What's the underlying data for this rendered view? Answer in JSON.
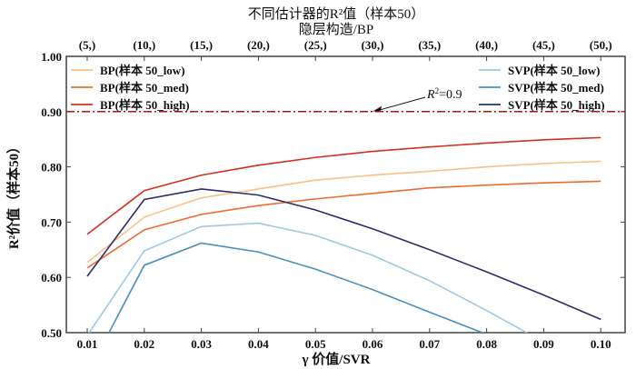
{
  "chart_data": {
    "type": "line",
    "title": "不同估计器的R²值（样本50）",
    "top_axis_label": "隐层构造/BP",
    "top_tick_labels": [
      "(5,)",
      "(10,)",
      "(15,)",
      "(20,)",
      "(25,)",
      "(30,)",
      "(35,)",
      "(40,)",
      "(45,)",
      "(50,)"
    ],
    "xlabel": "γ 价值/SVR",
    "ylabel": "R²价值（样本50）",
    "x": [
      0.01,
      0.02,
      0.03,
      0.04,
      0.05,
      0.06,
      0.07,
      0.08,
      0.09,
      0.1
    ],
    "x_tick_labels": [
      "0.01",
      "0.02",
      "0.03",
      "0.04",
      "0.05",
      "0.06",
      "0.07",
      "0.08",
      "0.09",
      "0.10"
    ],
    "y_ticks": [
      0.5,
      0.6,
      0.7,
      0.8,
      0.9,
      1.0
    ],
    "y_tick_labels": [
      "0.50",
      "0.60",
      "0.70",
      "0.80",
      "0.90",
      "1.00"
    ],
    "ylim": [
      0.5,
      1.0
    ],
    "xlim": [
      0.0063,
      0.1045
    ],
    "grid": false,
    "series": [
      {
        "name": "BP(样本 50_low)",
        "color": "#fdbf86",
        "values": [
          0.627,
          0.709,
          0.744,
          0.76,
          0.776,
          0.785,
          0.792,
          0.8,
          0.806,
          0.81
        ]
      },
      {
        "name": "BP(样本 50_med)",
        "color": "#ef6a2e",
        "values": [
          0.617,
          0.686,
          0.714,
          0.73,
          0.742,
          0.752,
          0.762,
          0.767,
          0.771,
          0.774
        ]
      },
      {
        "name": "BP(样本 50_high)",
        "color": "#d3301e",
        "values": [
          0.678,
          0.757,
          0.785,
          0.803,
          0.817,
          0.828,
          0.836,
          0.843,
          0.849,
          0.853
        ]
      },
      {
        "name": "SVP(样本 50_low)",
        "color": "#9ecae1",
        "values": [
          0.495,
          0.648,
          0.692,
          0.698,
          0.676,
          0.64,
          0.594,
          0.54,
          0.483,
          0.44
        ]
      },
      {
        "name": "SVP(样本 50_med)",
        "color": "#4a8fc0",
        "values": [
          0.425,
          0.622,
          0.662,
          0.646,
          0.615,
          0.578,
          0.537,
          0.497,
          0.46,
          0.42
        ]
      },
      {
        "name": "SVP(样本 50_high)",
        "color": "#2b2d6a",
        "values": [
          0.602,
          0.741,
          0.76,
          0.749,
          0.722,
          0.688,
          0.65,
          0.61,
          0.568,
          0.524
        ]
      }
    ],
    "reference_line": {
      "y": 0.9,
      "color": "#a3161a",
      "style": "dash-dot"
    },
    "annotation": {
      "text_italic": "R",
      "sup": "2",
      "text_rest": "=0.9",
      "points_to_x": 0.06
    },
    "legends": [
      {
        "placement": "top-left",
        "series": [
          0,
          1,
          2
        ]
      },
      {
        "placement": "top-right",
        "series": [
          3,
          4,
          5
        ]
      }
    ]
  }
}
